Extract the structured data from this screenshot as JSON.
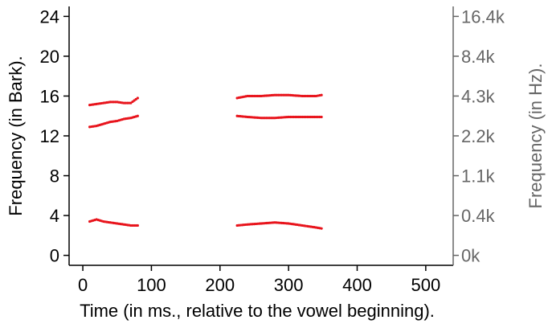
{
  "chart_data": {
    "type": "scatter",
    "title": "",
    "xlabel": "Time (in ms., relative to the vowel beginning).",
    "ylabel": "Frequency (in Bark).",
    "y2label": "Frequency (in Hz).",
    "xlim": [
      -20,
      540
    ],
    "ylim": [
      -1,
      25
    ],
    "x_ticks": [
      0,
      100,
      200,
      300,
      400,
      500
    ],
    "y_ticks": [
      0,
      4,
      8,
      12,
      16,
      20,
      24
    ],
    "y2_tick_labels": [
      {
        "bark": 0,
        "label": "0k"
      },
      {
        "bark": 4,
        "label": "0.4k"
      },
      {
        "bark": 8,
        "label": "1.1k"
      },
      {
        "bark": 12,
        "label": "2.2k"
      },
      {
        "bark": 16,
        "label": "4.3k"
      },
      {
        "bark": 20,
        "label": "8.4k"
      },
      {
        "bark": 24,
        "label": "16.4k"
      }
    ],
    "grid": false,
    "colors": {
      "data": "#e8141c",
      "left_axis": "#000000",
      "right_axis": "#666666"
    },
    "series": [
      {
        "segment": 1,
        "x": [
          10,
          20,
          30,
          40,
          50,
          60,
          70,
          80
        ],
        "y": [
          15.1,
          15.2,
          15.3,
          15.4,
          15.4,
          15.3,
          15.3,
          15.8
        ]
      },
      {
        "segment": 1,
        "x": [
          10,
          20,
          30,
          40,
          50,
          60,
          70,
          80
        ],
        "y": [
          12.9,
          13.0,
          13.2,
          13.4,
          13.5,
          13.7,
          13.8,
          14.0
        ]
      },
      {
        "segment": 1,
        "x": [
          10,
          20,
          30,
          40,
          50,
          60,
          70,
          80
        ],
        "y": [
          3.4,
          3.6,
          3.4,
          3.3,
          3.2,
          3.1,
          3.0,
          3.0
        ]
      },
      {
        "segment": 2,
        "x": [
          225,
          240,
          260,
          280,
          300,
          320,
          340,
          348
        ],
        "y": [
          15.8,
          16.0,
          16.0,
          16.1,
          16.1,
          16.0,
          16.0,
          16.1
        ]
      },
      {
        "segment": 2,
        "x": [
          225,
          240,
          260,
          280,
          300,
          320,
          340,
          348
        ],
        "y": [
          14.0,
          13.9,
          13.8,
          13.8,
          13.9,
          13.9,
          13.9,
          13.9
        ]
      },
      {
        "segment": 2,
        "x": [
          225,
          240,
          260,
          280,
          300,
          320,
          340,
          348
        ],
        "y": [
          3.0,
          3.1,
          3.2,
          3.3,
          3.2,
          3.0,
          2.8,
          2.7
        ]
      }
    ]
  }
}
